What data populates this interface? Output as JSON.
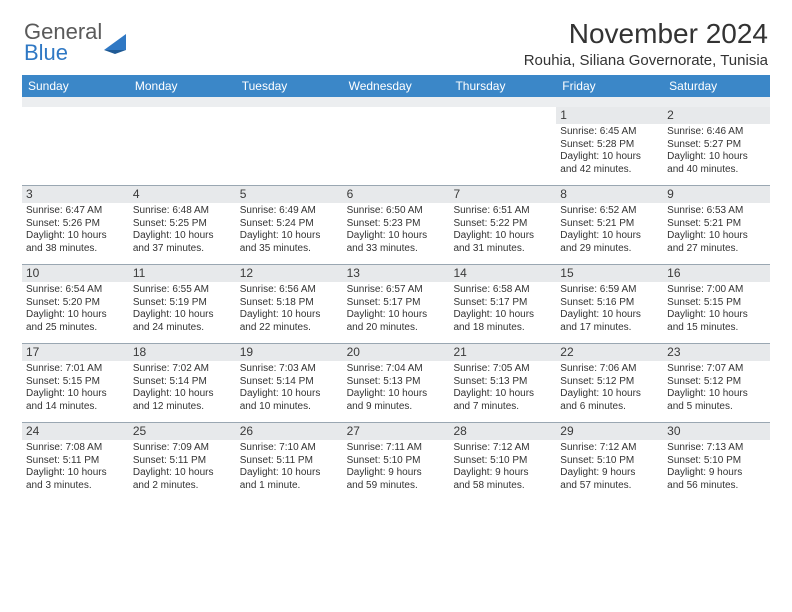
{
  "colors": {
    "header_bar": "#3b87c8",
    "daynum_bg": "#e7e9eb",
    "sep_bg": "#eceef0",
    "week_border": "#9aa7b2",
    "logo_gray": "#5a5a5a",
    "logo_blue": "#2f78c4",
    "text": "#333333"
  },
  "logo": {
    "general": "General",
    "blue": "Blue"
  },
  "title": "November 2024",
  "location": "Rouhia, Siliana Governorate, Tunisia",
  "dow": [
    "Sunday",
    "Monday",
    "Tuesday",
    "Wednesday",
    "Thursday",
    "Friday",
    "Saturday"
  ],
  "weeks": [
    [
      {
        "n": "",
        "sr": "",
        "ss": "",
        "dl1": "",
        "dl2": ""
      },
      {
        "n": "",
        "sr": "",
        "ss": "",
        "dl1": "",
        "dl2": ""
      },
      {
        "n": "",
        "sr": "",
        "ss": "",
        "dl1": "",
        "dl2": ""
      },
      {
        "n": "",
        "sr": "",
        "ss": "",
        "dl1": "",
        "dl2": ""
      },
      {
        "n": "",
        "sr": "",
        "ss": "",
        "dl1": "",
        "dl2": ""
      },
      {
        "n": "1",
        "sr": "Sunrise: 6:45 AM",
        "ss": "Sunset: 5:28 PM",
        "dl1": "Daylight: 10 hours",
        "dl2": "and 42 minutes."
      },
      {
        "n": "2",
        "sr": "Sunrise: 6:46 AM",
        "ss": "Sunset: 5:27 PM",
        "dl1": "Daylight: 10 hours",
        "dl2": "and 40 minutes."
      }
    ],
    [
      {
        "n": "3",
        "sr": "Sunrise: 6:47 AM",
        "ss": "Sunset: 5:26 PM",
        "dl1": "Daylight: 10 hours",
        "dl2": "and 38 minutes."
      },
      {
        "n": "4",
        "sr": "Sunrise: 6:48 AM",
        "ss": "Sunset: 5:25 PM",
        "dl1": "Daylight: 10 hours",
        "dl2": "and 37 minutes."
      },
      {
        "n": "5",
        "sr": "Sunrise: 6:49 AM",
        "ss": "Sunset: 5:24 PM",
        "dl1": "Daylight: 10 hours",
        "dl2": "and 35 minutes."
      },
      {
        "n": "6",
        "sr": "Sunrise: 6:50 AM",
        "ss": "Sunset: 5:23 PM",
        "dl1": "Daylight: 10 hours",
        "dl2": "and 33 minutes."
      },
      {
        "n": "7",
        "sr": "Sunrise: 6:51 AM",
        "ss": "Sunset: 5:22 PM",
        "dl1": "Daylight: 10 hours",
        "dl2": "and 31 minutes."
      },
      {
        "n": "8",
        "sr": "Sunrise: 6:52 AM",
        "ss": "Sunset: 5:21 PM",
        "dl1": "Daylight: 10 hours",
        "dl2": "and 29 minutes."
      },
      {
        "n": "9",
        "sr": "Sunrise: 6:53 AM",
        "ss": "Sunset: 5:21 PM",
        "dl1": "Daylight: 10 hours",
        "dl2": "and 27 minutes."
      }
    ],
    [
      {
        "n": "10",
        "sr": "Sunrise: 6:54 AM",
        "ss": "Sunset: 5:20 PM",
        "dl1": "Daylight: 10 hours",
        "dl2": "and 25 minutes."
      },
      {
        "n": "11",
        "sr": "Sunrise: 6:55 AM",
        "ss": "Sunset: 5:19 PM",
        "dl1": "Daylight: 10 hours",
        "dl2": "and 24 minutes."
      },
      {
        "n": "12",
        "sr": "Sunrise: 6:56 AM",
        "ss": "Sunset: 5:18 PM",
        "dl1": "Daylight: 10 hours",
        "dl2": "and 22 minutes."
      },
      {
        "n": "13",
        "sr": "Sunrise: 6:57 AM",
        "ss": "Sunset: 5:17 PM",
        "dl1": "Daylight: 10 hours",
        "dl2": "and 20 minutes."
      },
      {
        "n": "14",
        "sr": "Sunrise: 6:58 AM",
        "ss": "Sunset: 5:17 PM",
        "dl1": "Daylight: 10 hours",
        "dl2": "and 18 minutes."
      },
      {
        "n": "15",
        "sr": "Sunrise: 6:59 AM",
        "ss": "Sunset: 5:16 PM",
        "dl1": "Daylight: 10 hours",
        "dl2": "and 17 minutes."
      },
      {
        "n": "16",
        "sr": "Sunrise: 7:00 AM",
        "ss": "Sunset: 5:15 PM",
        "dl1": "Daylight: 10 hours",
        "dl2": "and 15 minutes."
      }
    ],
    [
      {
        "n": "17",
        "sr": "Sunrise: 7:01 AM",
        "ss": "Sunset: 5:15 PM",
        "dl1": "Daylight: 10 hours",
        "dl2": "and 14 minutes."
      },
      {
        "n": "18",
        "sr": "Sunrise: 7:02 AM",
        "ss": "Sunset: 5:14 PM",
        "dl1": "Daylight: 10 hours",
        "dl2": "and 12 minutes."
      },
      {
        "n": "19",
        "sr": "Sunrise: 7:03 AM",
        "ss": "Sunset: 5:14 PM",
        "dl1": "Daylight: 10 hours",
        "dl2": "and 10 minutes."
      },
      {
        "n": "20",
        "sr": "Sunrise: 7:04 AM",
        "ss": "Sunset: 5:13 PM",
        "dl1": "Daylight: 10 hours",
        "dl2": "and 9 minutes."
      },
      {
        "n": "21",
        "sr": "Sunrise: 7:05 AM",
        "ss": "Sunset: 5:13 PM",
        "dl1": "Daylight: 10 hours",
        "dl2": "and 7 minutes."
      },
      {
        "n": "22",
        "sr": "Sunrise: 7:06 AM",
        "ss": "Sunset: 5:12 PM",
        "dl1": "Daylight: 10 hours",
        "dl2": "and 6 minutes."
      },
      {
        "n": "23",
        "sr": "Sunrise: 7:07 AM",
        "ss": "Sunset: 5:12 PM",
        "dl1": "Daylight: 10 hours",
        "dl2": "and 5 minutes."
      }
    ],
    [
      {
        "n": "24",
        "sr": "Sunrise: 7:08 AM",
        "ss": "Sunset: 5:11 PM",
        "dl1": "Daylight: 10 hours",
        "dl2": "and 3 minutes."
      },
      {
        "n": "25",
        "sr": "Sunrise: 7:09 AM",
        "ss": "Sunset: 5:11 PM",
        "dl1": "Daylight: 10 hours",
        "dl2": "and 2 minutes."
      },
      {
        "n": "26",
        "sr": "Sunrise: 7:10 AM",
        "ss": "Sunset: 5:11 PM",
        "dl1": "Daylight: 10 hours",
        "dl2": "and 1 minute."
      },
      {
        "n": "27",
        "sr": "Sunrise: 7:11 AM",
        "ss": "Sunset: 5:10 PM",
        "dl1": "Daylight: 9 hours",
        "dl2": "and 59 minutes."
      },
      {
        "n": "28",
        "sr": "Sunrise: 7:12 AM",
        "ss": "Sunset: 5:10 PM",
        "dl1": "Daylight: 9 hours",
        "dl2": "and 58 minutes."
      },
      {
        "n": "29",
        "sr": "Sunrise: 7:12 AM",
        "ss": "Sunset: 5:10 PM",
        "dl1": "Daylight: 9 hours",
        "dl2": "and 57 minutes."
      },
      {
        "n": "30",
        "sr": "Sunrise: 7:13 AM",
        "ss": "Sunset: 5:10 PM",
        "dl1": "Daylight: 9 hours",
        "dl2": "and 56 minutes."
      }
    ]
  ]
}
